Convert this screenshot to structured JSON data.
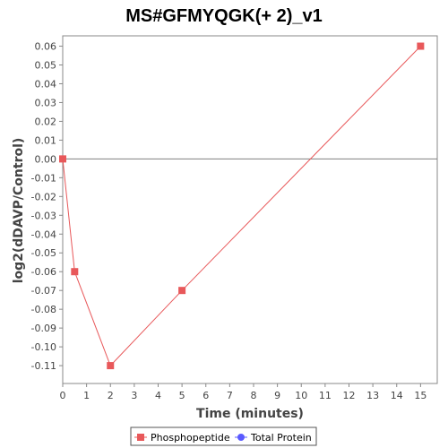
{
  "chart_data": {
    "type": "line",
    "title": "MS#GFMYQGK(+ 2)_v1",
    "xlabel": "Time (minutes)",
    "ylabel": "log2(dDAVP/Control)",
    "xlim": [
      0,
      15.7
    ],
    "ylim": [
      -0.1195,
      0.0655
    ],
    "x_ticks": [
      0,
      1,
      2,
      3,
      4,
      5,
      6,
      7,
      8,
      9,
      10,
      11,
      12,
      13,
      14,
      15
    ],
    "y_ticks": [
      0.06,
      0.05,
      0.04,
      0.03,
      0.02,
      0.01,
      0.0,
      -0.01,
      -0.02,
      -0.03,
      -0.04,
      -0.05,
      -0.06,
      -0.07,
      -0.08,
      -0.09,
      -0.1,
      -0.11
    ],
    "y_tick_labels": [
      "0.06",
      "0.05",
      "0.04",
      "0.03",
      "0.02",
      "0.01",
      "0.00",
      "-0.01",
      "-0.02",
      "-0.03",
      "-0.04",
      "-0.05",
      "-0.06",
      "-0.07",
      "-0.08",
      "-0.09",
      "-0.10",
      "-0.11"
    ],
    "zero_line": true,
    "grid": false,
    "legend_position": "bottom",
    "series": [
      {
        "name": "Phosphopeptide",
        "color": "#e8585a",
        "marker": "square",
        "x": [
          0,
          0.5,
          2,
          5,
          15
        ],
        "y": [
          0.0,
          -0.06,
          -0.11,
          -0.07,
          0.06
        ]
      },
      {
        "name": "Total Protein",
        "color": "#5a5aff",
        "marker": "circle",
        "x": [],
        "y": []
      }
    ]
  }
}
